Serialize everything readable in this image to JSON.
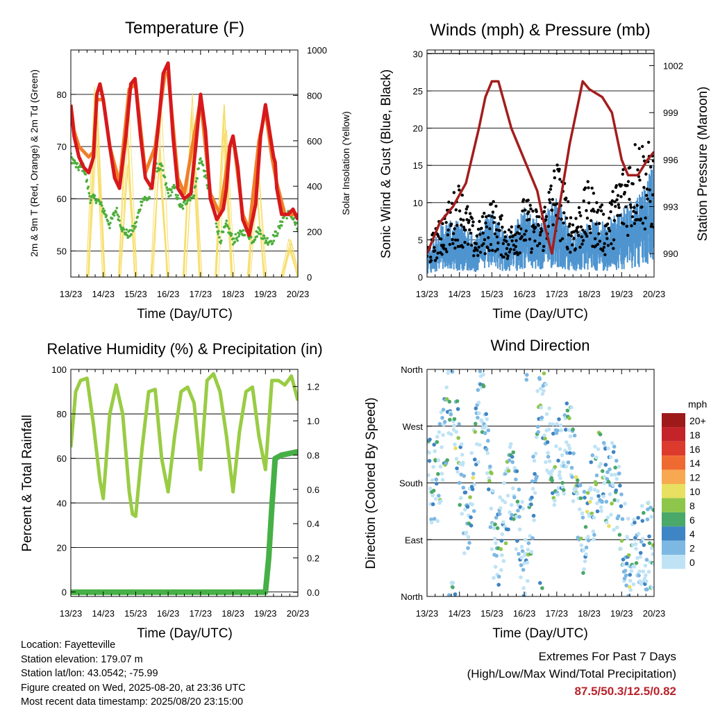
{
  "colors": {
    "air_temp_2m": "#d7191c",
    "air_temp_9m": "#f07f2a",
    "dewpoint": "#4cae3a",
    "solar": "#f7de6a",
    "wind_speed": "#4f95d0",
    "wind_gust": "#000000",
    "pressure": "#a31d1d",
    "humidity": "#99cc44",
    "precip": "#46b046",
    "extremes_text": "#b8232b"
  },
  "x_ticks": [
    "13/23",
    "14/23",
    "15/23",
    "16/23",
    "17/23",
    "18/23",
    "19/23",
    "20/23"
  ],
  "panels": {
    "temperature": {
      "title": "Temperature (F)",
      "xlabel": "Time (Day/UTC)",
      "ylabel_left": "2m & 9m T (Red, Orange) & 2m Td (Green)",
      "ylabel_right": "Solar Insolation (Yellow)",
      "left_ticks": [
        "50",
        "60",
        "70",
        "80"
      ],
      "right_ticks": [
        "0",
        "200",
        "400",
        "600",
        "800",
        "1000"
      ]
    },
    "winds": {
      "title": "Winds (mph) & Pressure (mb)",
      "xlabel": "Time (Day/UTC)",
      "ylabel_left": "Sonic Wind & Gust (Blue, Black)",
      "ylabel_right": "Station Pressure (Maroon)",
      "left_ticks": [
        "0",
        "5",
        "10",
        "15",
        "20",
        "25",
        "30"
      ],
      "right_ticks": [
        "990",
        "993",
        "996",
        "999",
        "1002"
      ]
    },
    "humidity": {
      "title": "Relative Humidity (%) & Precipitation (in)",
      "xlabel": "Time (Day/UTC)",
      "ylabel_left": "Percent & Total Rainfall",
      "left_ticks": [
        "0",
        "20",
        "40",
        "60",
        "80",
        "100"
      ],
      "right_ticks": [
        "0.0",
        "0.2",
        "0.4",
        "0.6",
        "0.8",
        "1.0",
        "1.2"
      ]
    },
    "direction": {
      "title": "Wind Direction",
      "xlabel": "Time (Day/UTC)",
      "ylabel_left": "Direction (Colored By Speed)",
      "left_ticks": [
        "North",
        "East",
        "South",
        "West",
        "North"
      ],
      "colorbar_title": "mph",
      "colorbar_labels": [
        "20+",
        "18",
        "16",
        "14",
        "12",
        "10",
        "8",
        "6",
        "4",
        "2",
        "0"
      ],
      "colorbar_colors": [
        "#9e1a1a",
        "#c4232a",
        "#dc3a2c",
        "#ef6a30",
        "#f7a850",
        "#e8e060",
        "#8dc64a",
        "#4aa868",
        "#3f84c4",
        "#7db8e2",
        "#bfe3f5"
      ]
    }
  },
  "info": {
    "location": "Location: Fayetteville",
    "elevation": "Station elevation: 179.07 m",
    "latlon": "Station lat/lon: 43.0542; -75.99",
    "created": "Figure created on Wed, 2025-08-20, at 23:36 UTC",
    "recent": "Most recent data timestamp: 2025/08/20 23:15:00"
  },
  "extremes": {
    "line1": "Extremes For Past 7 Days",
    "line2": "(High/Low/Max Wind/Total Precipitation)",
    "values": "87.5/50.3/12.5/0.82"
  },
  "chart_data": [
    {
      "type": "line",
      "title": "Temperature (F)",
      "xlabel": "Time (Day/UTC)",
      "ylabel": "2m & 9m T (Red, Orange) & 2m Td (Green)",
      "y2label": "Solar Insolation (Yellow)",
      "x_unit": "days since 13/23 UTC",
      "ylim": [
        45,
        88.5
      ],
      "y2lim": [
        0,
        1000
      ],
      "series": [
        {
          "name": "2m T (Red)",
          "x": [
            0,
            0.1,
            0.25,
            0.4,
            0.55,
            0.7,
            0.8,
            0.9,
            1.0,
            1.2,
            1.35,
            1.5,
            1.7,
            1.85,
            1.98,
            2.15,
            2.3,
            2.5,
            2.7,
            2.85,
            3.0,
            3.15,
            3.3,
            3.5,
            3.7,
            3.85,
            4.0,
            4.15,
            4.3,
            4.5,
            4.7,
            4.8,
            4.9,
            5.0,
            5.15,
            5.3,
            5.5,
            5.7,
            5.85,
            6.0,
            6.15,
            6.25,
            6.3,
            6.35,
            6.5,
            6.7,
            6.85,
            7.0
          ],
          "y": [
            78,
            72,
            68,
            66,
            65,
            68,
            80,
            82,
            79,
            70,
            64,
            62,
            72,
            82,
            83,
            72,
            64,
            62,
            74,
            84,
            86,
            72,
            62,
            60,
            61,
            70,
            80,
            73,
            60,
            56,
            58,
            62,
            70,
            72,
            66,
            56,
            53,
            59,
            72,
            78,
            72,
            68,
            67,
            62,
            57,
            57,
            58,
            56
          ]
        },
        {
          "name": "9m T (Orange)",
          "x": [
            0,
            0.1,
            0.25,
            0.4,
            0.55,
            0.7,
            0.8,
            1.0,
            1.2,
            1.5,
            1.8,
            2.0,
            2.3,
            2.6,
            2.9,
            3.0,
            3.3,
            3.5,
            3.8,
            4.0,
            4.3,
            4.6,
            4.9,
            5.0,
            5.3,
            5.5,
            5.8,
            6.0,
            6.2,
            6.35,
            6.6,
            7.0
          ],
          "y": [
            78,
            73,
            70,
            69,
            68,
            69,
            79,
            79,
            70,
            63,
            81,
            82,
            65,
            70,
            84,
            84,
            64,
            61,
            72,
            79,
            61,
            57,
            70,
            72,
            57,
            54,
            71,
            77,
            68,
            63,
            57,
            57
          ]
        },
        {
          "name": "2m Td (Green)",
          "x": [
            0,
            0.2,
            0.4,
            0.6,
            0.8,
            1.0,
            1.2,
            1.4,
            1.6,
            1.8,
            2.0,
            2.2,
            2.4,
            2.6,
            2.8,
            3.0,
            3.2,
            3.4,
            3.6,
            3.8,
            4.0,
            4.2,
            4.4,
            4.6,
            4.8,
            5.0,
            5.2,
            5.4,
            5.6,
            5.8,
            6.0,
            6.2,
            6.4,
            6.6,
            6.8,
            7.0
          ],
          "y": [
            68,
            66,
            66,
            60,
            60,
            58,
            55,
            58,
            54,
            53,
            55,
            60,
            60,
            66,
            66,
            61,
            62,
            58,
            60,
            61,
            68,
            63,
            58,
            52,
            55,
            52,
            53,
            54,
            52,
            54,
            52,
            52,
            54,
            57,
            57,
            54
          ]
        },
        {
          "name": "Solar Insolation (Yellow)",
          "x": [
            0.5,
            0.75,
            1.0,
            1.5,
            1.75,
            2.0,
            2.5,
            2.75,
            3.0,
            3.5,
            3.75,
            4.0,
            4.5,
            4.75,
            5.0,
            5.5,
            5.75,
            6.0,
            6.5,
            6.75,
            7.0
          ],
          "y": [
            0,
            950,
            0,
            0,
            820,
            0,
            0,
            780,
            0,
            0,
            820,
            0,
            0,
            880,
            0,
            0,
            600,
            0,
            0,
            200,
            0
          ]
        }
      ]
    },
    {
      "type": "line",
      "title": "Winds (mph) & Pressure (mb)",
      "xlabel": "Time (Day/UTC)",
      "ylabel": "Sonic Wind & Gust (Blue, Black)",
      "y2label": "Station Pressure (Maroon)",
      "x_unit": "days since 13/23 UTC",
      "ylim": [
        0,
        30.5
      ],
      "y2lim": [
        988.5,
        1003
      ],
      "series": [
        {
          "name": "Wind speed (Blue)",
          "x": [
            0,
            0.5,
            1.0,
            1.5,
            2.0,
            2.5,
            3.0,
            3.5,
            4.0,
            4.5,
            5.0,
            5.5,
            6.0,
            6.5,
            7.0
          ],
          "y": [
            2,
            4,
            4,
            3,
            5,
            3,
            5,
            4,
            6,
            3,
            4,
            4,
            5,
            6,
            8
          ]
        },
        {
          "name": "Gust (Black)",
          "x": [
            0,
            0.5,
            1.0,
            1.5,
            2.0,
            2.5,
            3.0,
            3.5,
            4.0,
            4.5,
            5.0,
            5.5,
            6.0,
            6.5,
            7.0
          ],
          "y": [
            4,
            8,
            12,
            6,
            10,
            6,
            10,
            8,
            15,
            8,
            12,
            8,
            14,
            18,
            16
          ]
        },
        {
          "name": "Station Pressure (Maroon)",
          "x": [
            0,
            0.4,
            0.8,
            1.2,
            1.6,
            1.8,
            2.0,
            2.2,
            2.6,
            3.0,
            3.4,
            3.6,
            3.85,
            4.0,
            4.4,
            4.8,
            5.0,
            5.4,
            5.7,
            6.0,
            6.2,
            6.5,
            6.8,
            7.0
          ],
          "y": [
            990,
            992,
            993,
            994.5,
            998,
            1000,
            1001,
            1001,
            998,
            996,
            994,
            992,
            990,
            992,
            997,
            1001,
            1000.5,
            1000,
            999,
            996,
            995,
            995,
            996,
            996.5
          ]
        }
      ]
    },
    {
      "type": "line",
      "title": "Relative Humidity (%) & Precipitation (in)",
      "xlabel": "Time (Day/UTC)",
      "ylabel": "Percent & Total Rainfall",
      "x_unit": "days since 13/23 UTC",
      "ylim": [
        -2,
        100
      ],
      "y2lim": [
        -0.0246,
        1.3
      ],
      "series": [
        {
          "name": "Relative Humidity",
          "x": [
            0,
            0.15,
            0.3,
            0.5,
            0.7,
            0.9,
            1.0,
            1.2,
            1.4,
            1.6,
            1.8,
            1.9,
            2.0,
            2.2,
            2.4,
            2.6,
            2.8,
            3.0,
            3.2,
            3.4,
            3.6,
            3.8,
            4.0,
            4.2,
            4.4,
            4.6,
            4.8,
            5.0,
            5.2,
            5.4,
            5.6,
            5.8,
            6.0,
            6.2,
            6.4,
            6.6,
            6.8,
            7.0
          ],
          "y": [
            65,
            90,
            95,
            96,
            75,
            50,
            42,
            80,
            93,
            80,
            45,
            35,
            34,
            65,
            90,
            91,
            60,
            45,
            70,
            90,
            92,
            85,
            55,
            95,
            98,
            90,
            70,
            45,
            72,
            90,
            92,
            70,
            55,
            95,
            95,
            93,
            97,
            86
          ]
        },
        {
          "name": "Total Precipitation",
          "x": [
            0,
            5.8,
            6.0,
            6.1,
            6.2,
            6.3,
            6.5,
            7.0
          ],
          "y": [
            0,
            0,
            0,
            0.2,
            0.5,
            0.78,
            0.8,
            0.82
          ]
        }
      ]
    },
    {
      "type": "scatter",
      "title": "Wind Direction",
      "xlabel": "Time (Day/UTC)",
      "ylabel": "Direction (Colored By Speed)",
      "x_unit": "days since 13/23 UTC",
      "y_unit": "degrees from North",
      "ylim": [
        0,
        360
      ],
      "colorbar": {
        "title": "mph",
        "labels": [
          "20+",
          "18",
          "16",
          "14",
          "12",
          "10",
          "8",
          "6",
          "4",
          "2",
          "0"
        ]
      },
      "series": [
        {
          "name": "direction",
          "x": [
            0.3,
            0.8,
            1.2,
            1.7,
            2.1,
            2.6,
            3.1,
            3.5,
            3.9,
            4.4,
            4.8,
            5.3,
            5.8,
            6.2,
            6.7
          ],
          "y": [
            180,
            340,
            90,
            320,
            60,
            180,
            40,
            330,
            200,
            250,
            100,
            190,
            170,
            60,
            80
          ]
        }
      ]
    }
  ]
}
